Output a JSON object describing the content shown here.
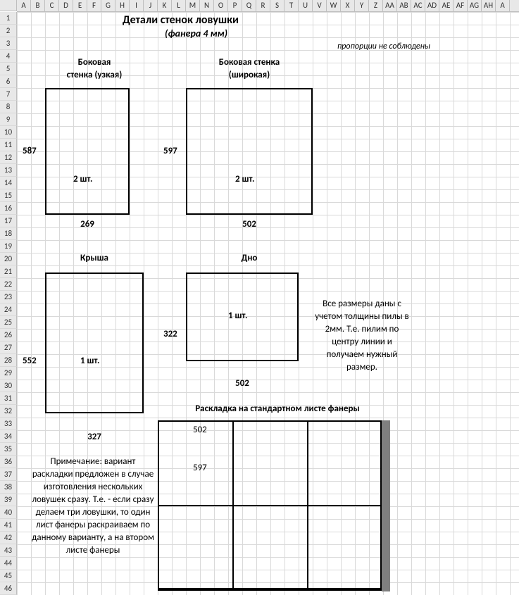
{
  "columns": [
    "A",
    "B",
    "C",
    "D",
    "E",
    "F",
    "G",
    "H",
    "I",
    "J",
    "K",
    "L",
    "M",
    "N",
    "O",
    "P",
    "Q",
    "R",
    "S",
    "T",
    "U",
    "V",
    "W",
    "X",
    "Y",
    "Z",
    "AA",
    "AB",
    "AC",
    "AD",
    "AE",
    "AF",
    "AG",
    "AH",
    "A"
  ],
  "rowCount": 46,
  "title": "Детали стенок ловушки",
  "subtitle": "(фанера 4 мм)",
  "propNote": "пропорции не соблюдены",
  "labels": {
    "sideNarrow1": "Боковая",
    "sideNarrow2": "стенка (узкая)",
    "sideWide1": "Боковая стенка",
    "sideWide2": "(широкая)",
    "roof": "Крыша",
    "bottom": "Дно",
    "layoutTitle": "Раскладка на стандартном листе фанеры"
  },
  "dims": {
    "narrowH": "587",
    "narrowW": "269",
    "wideH": "597",
    "wideW": "502",
    "roofH": "552",
    "roofW": "327",
    "bottomH": "322",
    "bottomW": "502",
    "layout502": "502",
    "layout597": "597"
  },
  "qtys": {
    "two1": "2 шт.",
    "two2": "2 шт.",
    "one1": "1 шт.",
    "one2": "1 шт."
  },
  "sideNote": "Все размеры даны с учетом толщины пилы в 2мм. Т.е. пилим по центру линии и получаем нужный размер.",
  "bottomNote": "Примечание: вариант раскладки предложен в случае изготовления нескольких ловушек сразу. Т.е. - если сразу делаем три ловушки, то один лист фанеры раскраиваем по данному варианту, а на втором листе фанеры"
}
